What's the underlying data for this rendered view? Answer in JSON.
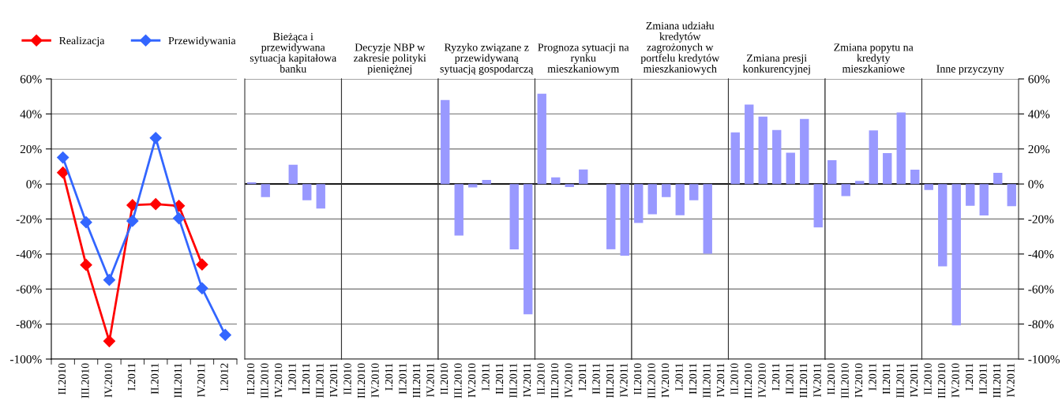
{
  "chart_data": [
    {
      "type": "line",
      "categories": [
        "II.2010",
        "III.2010",
        "IV.2010",
        "I.2011",
        "II.2011",
        "III.2011",
        "IV.2011",
        "I.2012"
      ],
      "series": [
        {
          "name": "Realizacja",
          "color": "#ff0000",
          "values": [
            6.5,
            -46.2,
            -89.8,
            -12.1,
            -11.5,
            -12.5,
            -46,
            null
          ]
        },
        {
          "name": "Przewidywania",
          "color": "#3366ff",
          "values": [
            15.1,
            -21.9,
            -54.8,
            -21.1,
            26.3,
            -19.6,
            -59.6,
            -86.2
          ]
        }
      ],
      "ylim": [
        -100,
        60
      ],
      "yticks": [
        {
          "value": -100,
          "label": "-100%"
        },
        {
          "value": -80,
          "label": "-80%"
        },
        {
          "value": -60,
          "label": "-60%"
        },
        {
          "value": -40,
          "label": "-40%"
        },
        {
          "value": -20,
          "label": "-20%"
        },
        {
          "value": 0,
          "label": "0%"
        },
        {
          "value": 20,
          "label": "20%"
        },
        {
          "value": 40,
          "label": "40%"
        },
        {
          "value": 60,
          "label": "60%"
        }
      ],
      "grid": "y",
      "legend": "top",
      "marker": "diamond",
      "line_style": "solid"
    },
    {
      "type": "bar",
      "title": "Bieżąca i\nprzewidywana\nsytuacja kapitałowa\nbanku",
      "categories": [
        "II.2010",
        "III.2010",
        "IV.2010",
        "I.2011",
        "II.2011",
        "III.2011",
        "IV.2011"
      ],
      "values": [
        1,
        -7.5,
        null,
        11,
        -9.3,
        -14,
        null
      ],
      "color": "#9999ff",
      "ylim": [
        -100,
        60
      ],
      "yticks": [
        -100,
        -80,
        -60,
        -40,
        -20,
        0,
        20,
        40,
        60
      ],
      "grid": "y",
      "tick_labels": "x",
      "ref_lines": [
        {
          "axis": "y",
          "value": 0,
          "color": "#000000"
        }
      ]
    },
    {
      "type": "bar",
      "title": "Decyzje NBP w\nzakresie polityki\npieniężnej",
      "categories": [
        "II.2010",
        "III.2010",
        "IV.2010",
        "I.2011",
        "II.2011",
        "III.2011",
        "IV.2011"
      ],
      "values": [
        null,
        null,
        null,
        null,
        null,
        null,
        null
      ],
      "ylim": [
        -100,
        60
      ],
      "yticks": [
        -100,
        -80,
        -60,
        -40,
        -20,
        0,
        20,
        40,
        60
      ],
      "grid": "y",
      "tick_labels": "x",
      "ref_lines": [
        {
          "axis": "y",
          "value": 0,
          "color": "#000000"
        }
      ]
    },
    {
      "type": "bar",
      "title": "Ryzyko związane z\nprzewidywaną\nsytuacją gospodarczą",
      "categories": [
        "II.2010",
        "III.2010",
        "IV.2010",
        "I.2011",
        "II.2011",
        "III.2011",
        "IV.2011"
      ],
      "values": [
        48,
        -29.5,
        -2,
        2.3,
        null,
        -37.3,
        -74.4
      ],
      "color": "#9999ff",
      "ylim": [
        -100,
        60
      ],
      "yticks": [
        -100,
        -80,
        -60,
        -40,
        -20,
        0,
        20,
        40,
        60
      ],
      "grid": "y",
      "tick_labels": "x",
      "ref_lines": [
        {
          "axis": "y",
          "value": 0,
          "color": "#000000"
        }
      ]
    },
    {
      "type": "bar",
      "title": "Prognoza sytuacji na\nrynku\nmieszkaniowym",
      "categories": [
        "II.2010",
        "III.2010",
        "IV.2010",
        "I.2011",
        "II.2011",
        "III.2011",
        "IV.2011"
      ],
      "values": [
        51.6,
        3.8,
        -1.8,
        8.3,
        null,
        -37.3,
        -41
      ],
      "color": "#9999ff",
      "ylim": [
        -100,
        60
      ],
      "yticks": [
        -100,
        -80,
        -60,
        -40,
        -20,
        0,
        20,
        40,
        60
      ],
      "grid": "y",
      "tick_labels": "x",
      "ref_lines": [
        {
          "axis": "y",
          "value": 0,
          "color": "#000000"
        }
      ]
    },
    {
      "type": "bar",
      "title": "Zmiana udziału\nkredytów\nzagrożonych w\nportfelu kredytów\nmieszkaniowych",
      "categories": [
        "II.2010",
        "III.2010",
        "IV.2010",
        "I.2011",
        "II.2011",
        "III.2011",
        "IV.2011"
      ],
      "values": [
        -22.3,
        -17.3,
        -7.5,
        -17.9,
        -9.3,
        -39.8,
        null
      ],
      "color": "#9999ff",
      "ylim": [
        -100,
        60
      ],
      "yticks": [
        -100,
        -80,
        -60,
        -40,
        -20,
        0,
        20,
        40,
        60
      ],
      "grid": "y",
      "tick_labels": "x",
      "ref_lines": [
        {
          "axis": "y",
          "value": 0,
          "color": "#000000"
        }
      ]
    },
    {
      "type": "bar",
      "title": "Zmiana presji\nkonkurencyjnej",
      "categories": [
        "II.2010",
        "III.2010",
        "IV.2010",
        "I.2011",
        "II.2011",
        "III.2011",
        "IV.2011"
      ],
      "values": [
        29.5,
        45.3,
        38.5,
        30.8,
        17.9,
        37.1,
        -24.8
      ],
      "color": "#9999ff",
      "ylim": [
        -100,
        60
      ],
      "yticks": [
        -100,
        -80,
        -60,
        -40,
        -20,
        0,
        20,
        40,
        60
      ],
      "grid": "y",
      "tick_labels": "x",
      "ref_lines": [
        {
          "axis": "y",
          "value": 0,
          "color": "#000000"
        }
      ]
    },
    {
      "type": "bar",
      "title": "Zmiana popytu na\nkredyty\nmieszkaniowe",
      "categories": [
        "II.2010",
        "III.2010",
        "IV.2010",
        "I.2011",
        "II.2011",
        "III.2011",
        "IV.2011"
      ],
      "values": [
        13.6,
        -6.9,
        1.8,
        30.6,
        17.6,
        40.9,
        8.2
      ],
      "color": "#9999ff",
      "ylim": [
        -100,
        60
      ],
      "yticks": [
        -100,
        -80,
        -60,
        -40,
        -20,
        0,
        20,
        40,
        60
      ],
      "grid": "y",
      "tick_labels": "x",
      "ref_lines": [
        {
          "axis": "y",
          "value": 0,
          "color": "#000000"
        }
      ]
    },
    {
      "type": "bar",
      "title": "Inne przyczyny",
      "categories": [
        "II.2010",
        "III.2010",
        "IV.2010",
        "I.2011",
        "II.2011",
        "III.2011",
        "IV.2011"
      ],
      "values": [
        -3.4,
        -47,
        -80.7,
        -12.5,
        -18,
        6.4,
        -12.7
      ],
      "color": "#9999ff",
      "ylim": [
        -100,
        60
      ],
      "yticks": [
        {
          "value": -100,
          "label": "-100%"
        },
        {
          "value": -80,
          "label": "-80%"
        },
        {
          "value": -60,
          "label": "-60%"
        },
        {
          "value": -40,
          "label": "-40%"
        },
        {
          "value": -20,
          "label": "-20%"
        },
        {
          "value": 0,
          "label": "0%"
        },
        {
          "value": 20,
          "label": "20%"
        },
        {
          "value": 40,
          "label": "40%"
        },
        {
          "value": 60,
          "label": "60%"
        }
      ],
      "grid": "y",
      "ref_lines": [
        {
          "axis": "y",
          "value": 0,
          "color": "#000000"
        }
      ]
    }
  ]
}
